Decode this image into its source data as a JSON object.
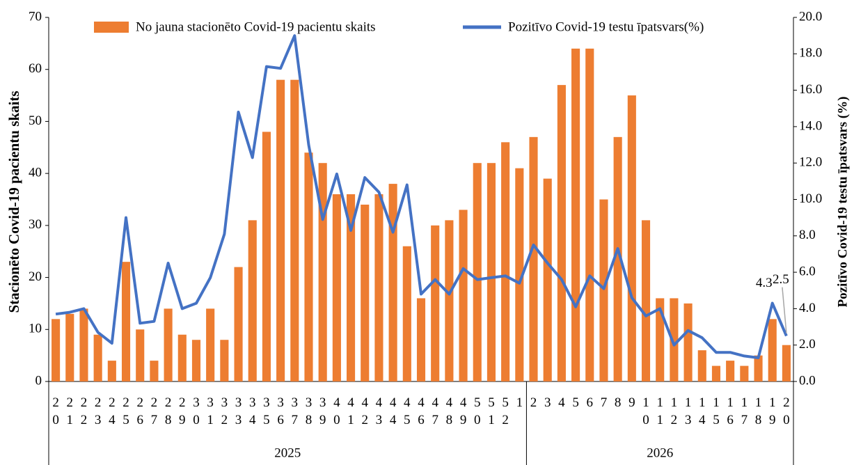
{
  "chart_data": {
    "type": "bar_line",
    "y_label": "Stacionēto Covid-19 pacientu skaits",
    "y2_label": "Pozitīvo Covid-19 testu īpatsvars (%)",
    "category_groups": [
      {
        "label": "2025",
        "categories": [
          "20",
          "21",
          "22",
          "23",
          "24",
          "25",
          "26",
          "27",
          "28",
          "29",
          "30",
          "31",
          "32",
          "33",
          "34",
          "35",
          "36",
          "37",
          "38",
          "39",
          "40",
          "41",
          "42",
          "43",
          "44",
          "45",
          "46",
          "47",
          "48",
          "49",
          "50",
          "51",
          "52",
          "1"
        ]
      },
      {
        "label": "2026",
        "categories": [
          "2",
          "3",
          "4",
          "5",
          "6",
          "7",
          "8",
          "9",
          "10",
          "11",
          "12",
          "13",
          "14",
          "15",
          "16",
          "17",
          "18",
          "19",
          "20"
        ]
      }
    ],
    "series": [
      {
        "name": "No jauna stacionēto Covid-19 pacientu skaits",
        "type": "bar",
        "color": "#ed7d31",
        "values": [
          12,
          13,
          14,
          9,
          4,
          23,
          10,
          4,
          14,
          9,
          8,
          14,
          8,
          22,
          31,
          48,
          58,
          58,
          44,
          42,
          36,
          36,
          34,
          36,
          38,
          26,
          16,
          30,
          31,
          33,
          42,
          42,
          46,
          41,
          47,
          39,
          57,
          64,
          64,
          35,
          47,
          55,
          31,
          16,
          16,
          15,
          6,
          3,
          4,
          3,
          5,
          12,
          7
        ]
      },
      {
        "name": "Pozitīvo Covid-19 testu īpatsvars(%)",
        "type": "line",
        "axis": "y2",
        "color": "#4472c4",
        "values": [
          3.7,
          3.8,
          4.0,
          2.7,
          2.1,
          9.0,
          3.2,
          3.3,
          6.5,
          4.0,
          4.3,
          5.7,
          8.1,
          14.8,
          12.3,
          17.3,
          17.2,
          19.0,
          13.0,
          8.9,
          11.4,
          8.3,
          11.2,
          10.4,
          8.2,
          10.8,
          4.8,
          5.6,
          4.8,
          6.2,
          5.6,
          5.7,
          5.8,
          5.4,
          7.5,
          6.5,
          5.6,
          4.1,
          5.8,
          5.1,
          7.3,
          4.6,
          3.6,
          4.0,
          2.0,
          2.8,
          2.4,
          1.6,
          1.6,
          1.4,
          1.3,
          4.3,
          2.5
        ],
        "value_labels": [
          null,
          null,
          null,
          null,
          null,
          null,
          null,
          null,
          null,
          null,
          null,
          null,
          null,
          null,
          null,
          null,
          null,
          null,
          null,
          null,
          null,
          null,
          null,
          null,
          null,
          null,
          null,
          null,
          null,
          null,
          null,
          null,
          null,
          null,
          null,
          null,
          null,
          null,
          null,
          null,
          null,
          null,
          null,
          null,
          null,
          null,
          null,
          null,
          null,
          null,
          null,
          "4.3",
          "2.5"
        ]
      }
    ],
    "ylim": [
      0,
      70
    ],
    "yticks": [
      0,
      10,
      20,
      30,
      40,
      50,
      60,
      70
    ],
    "y2lim": [
      0,
      20
    ],
    "y2ticks": [
      {
        "value": 0,
        "label": "0.0"
      },
      {
        "value": 2,
        "label": "2.0"
      },
      {
        "value": 4,
        "label": "4.0"
      },
      {
        "value": 6,
        "label": "6.0"
      },
      {
        "value": 8,
        "label": "8.0"
      },
      {
        "value": 10,
        "label": "10.0"
      },
      {
        "value": 12,
        "label": "12.0"
      },
      {
        "value": 14,
        "label": "14.0"
      },
      {
        "value": 16,
        "label": "16.0"
      },
      {
        "value": 18,
        "label": "18.0"
      },
      {
        "value": 20,
        "label": "20.0"
      }
    ],
    "legend": "top"
  }
}
